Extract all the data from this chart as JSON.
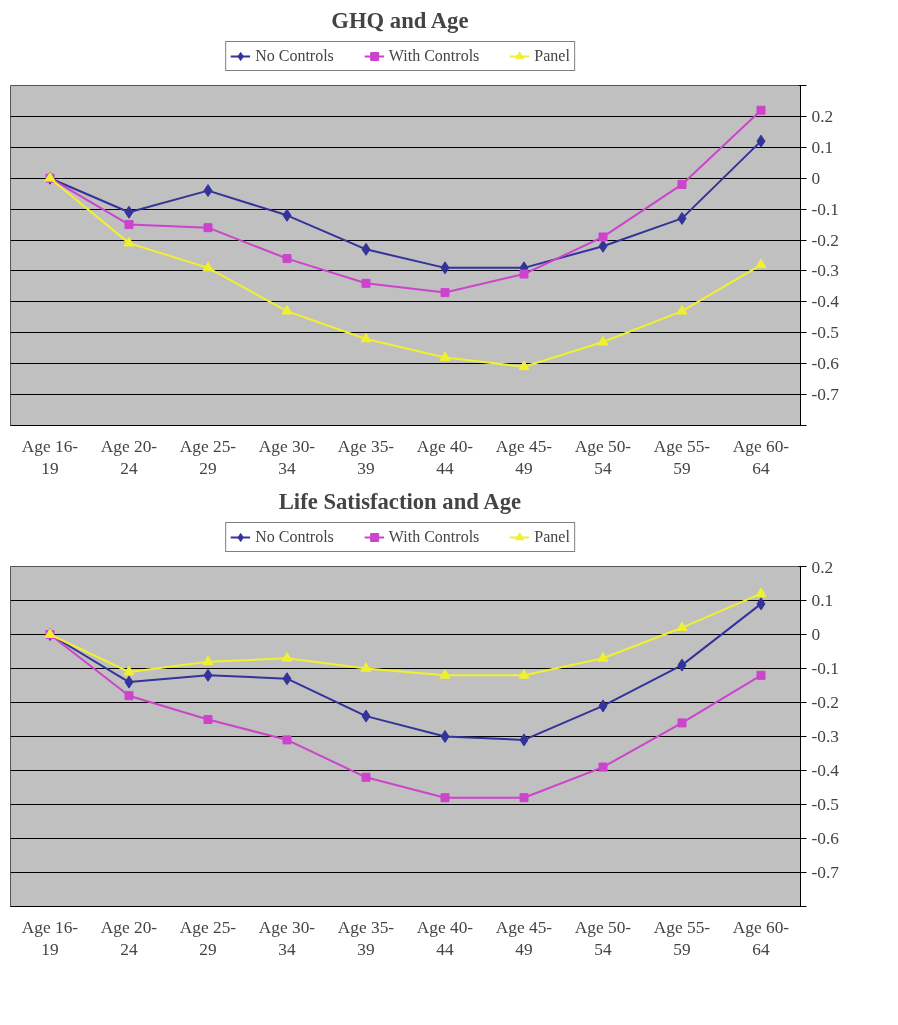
{
  "chart_data": [
    {
      "type": "line",
      "title": "GHQ and Age",
      "categories": [
        "Age 16-19",
        "Age 20-24",
        "Age 25-29",
        "Age 30-34",
        "Age 35-39",
        "Age 40-44",
        "Age 45-49",
        "Age 50-54",
        "Age 55-59",
        "Age 60-64"
      ],
      "series": [
        {
          "name": "No Controls",
          "color": "#333399",
          "marker": "diamond",
          "values": [
            0,
            -0.11,
            -0.04,
            -0.12,
            -0.23,
            -0.29,
            -0.29,
            -0.22,
            -0.13,
            0.12
          ]
        },
        {
          "name": "With Controls",
          "color": "#cc44cc",
          "marker": "square",
          "values": [
            0,
            -0.15,
            -0.16,
            -0.26,
            -0.34,
            -0.37,
            -0.31,
            -0.19,
            -0.02,
            0.22
          ]
        },
        {
          "name": "Panel",
          "color": "#f0f030",
          "marker": "triangle",
          "values": [
            0,
            -0.21,
            -0.29,
            -0.43,
            -0.52,
            -0.58,
            -0.61,
            -0.53,
            -0.43,
            -0.28
          ]
        }
      ],
      "ylim": [
        -0.8,
        0.3
      ],
      "yticks": [
        {
          "value": -0.8,
          "label": null
        },
        -0.7,
        -0.6,
        -0.5,
        -0.4,
        -0.3,
        -0.2,
        -0.1,
        0,
        0.1,
        0.2,
        {
          "value": 0.3,
          "label": null
        }
      ],
      "grid": "y",
      "legend": "top"
    },
    {
      "type": "line",
      "title": "Life Satisfaction and Age",
      "categories": [
        "Age 16-19",
        "Age 20-24",
        "Age 25-29",
        "Age 30-34",
        "Age 35-39",
        "Age 40-44",
        "Age 45-49",
        "Age 50-54",
        "Age 55-59",
        "Age 60-64"
      ],
      "series": [
        {
          "name": "No Controls",
          "color": "#333399",
          "marker": "diamond",
          "values": [
            0,
            -0.14,
            -0.12,
            -0.13,
            -0.24,
            -0.3,
            -0.31,
            -0.21,
            -0.09,
            0.09
          ]
        },
        {
          "name": "With Controls",
          "color": "#cc44cc",
          "marker": "square",
          "values": [
            0,
            -0.18,
            -0.25,
            -0.31,
            -0.42,
            -0.48,
            -0.48,
            -0.39,
            -0.26,
            -0.12
          ]
        },
        {
          "name": "Panel",
          "color": "#f0f030",
          "marker": "triangle",
          "values": [
            0,
            -0.11,
            -0.08,
            -0.07,
            -0.1,
            -0.12,
            -0.12,
            -0.07,
            0.02,
            0.12
          ]
        }
      ],
      "ylim": [
        -0.8,
        0.2
      ],
      "yticks": [
        {
          "value": -0.8,
          "label": null
        },
        -0.7,
        -0.6,
        -0.5,
        -0.4,
        -0.3,
        -0.2,
        -0.1,
        0,
        0.1,
        0.2
      ],
      "grid": "y",
      "legend": "top"
    }
  ]
}
